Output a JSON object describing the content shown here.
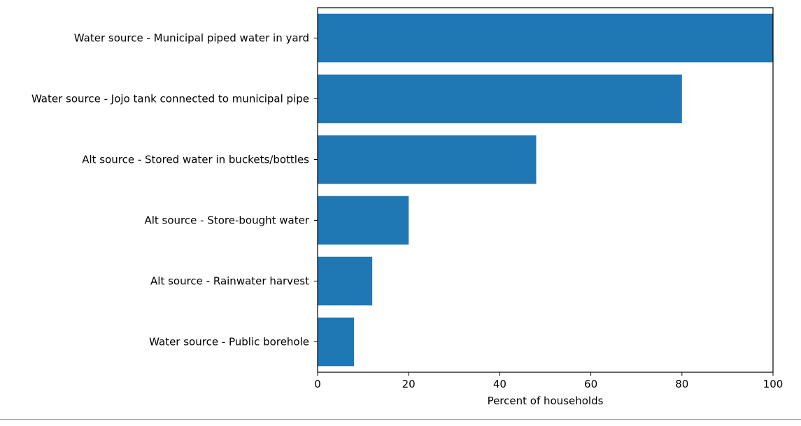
{
  "chart_data": {
    "type": "bar",
    "orientation": "horizontal",
    "categories": [
      "Water source - Municipal piped water in yard",
      "Water source - Jojo tank connected to municipal pipe",
      "Alt source - Stored water in buckets/bottles",
      "Alt source - Store-bought water",
      "Alt source - Rainwater harvest",
      "Water source - Public borehole"
    ],
    "values": [
      100,
      80,
      48,
      20,
      12,
      8
    ],
    "xlabel": "Percent of households",
    "ylabel": "",
    "title": "",
    "xlim": [
      0,
      100
    ],
    "xticks": [
      0,
      20,
      40,
      60,
      80,
      100
    ],
    "grid": false,
    "bar_color": "#1f77b4"
  }
}
